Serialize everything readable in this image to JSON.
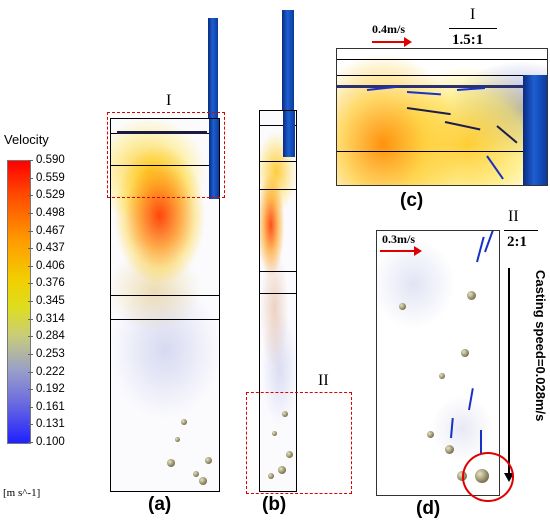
{
  "legend": {
    "title": "Velocity",
    "ticks": [
      "0.590",
      "0.559",
      "0.529",
      "0.498",
      "0.467",
      "0.437",
      "0.406",
      "0.376",
      "0.345",
      "0.314",
      "0.284",
      "0.253",
      "0.222",
      "0.192",
      "0.161",
      "0.131",
      "0.100"
    ],
    "units": "[m s^-1]"
  },
  "panels": {
    "a": {
      "caption": "(a)",
      "region_label": "I"
    },
    "b": {
      "caption": "(b)",
      "region_label": "II"
    },
    "c": {
      "caption": "(c)",
      "region_label": "I",
      "magnification": "1.5:1",
      "scale_arrow_label": "0.4m/s"
    },
    "d": {
      "caption": "(d)",
      "region_label": "II",
      "magnification": "2:1",
      "scale_arrow_label": "0.3m/s",
      "casting_speed_label": "Casting speed=0.028m/s"
    }
  },
  "colors": {
    "highlight": "#e00000",
    "nozzle": "#1d5fd0",
    "velocity_max": "#ff0000",
    "velocity_min": "#2020ff"
  }
}
